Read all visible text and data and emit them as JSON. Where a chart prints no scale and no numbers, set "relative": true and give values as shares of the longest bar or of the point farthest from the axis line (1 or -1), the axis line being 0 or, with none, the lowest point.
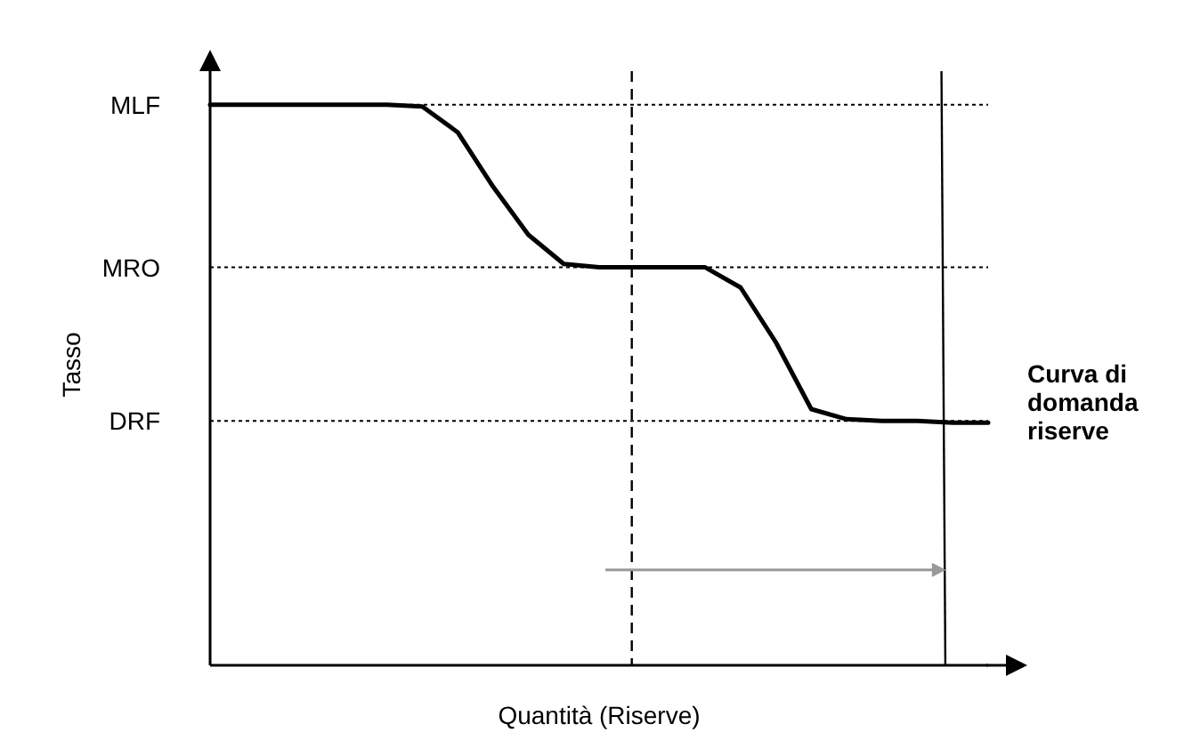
{
  "chart_data": {
    "type": "line",
    "xlabel": "Quantità (Riserve)",
    "ylabel": "Tasso",
    "relative": true,
    "marker": "none",
    "line_style": "solid",
    "categories": [
      null,
      null,
      null,
      null,
      null,
      null,
      null,
      null,
      null,
      null,
      null,
      null,
      null,
      null,
      null,
      null,
      null,
      null,
      null,
      null,
      null,
      null,
      null
    ],
    "series": [
      {
        "name": "Curva di domanda riserve",
        "color": "#000000",
        "values": [
          1,
          1,
          1,
          1,
          1,
          1,
          0.997,
          0.951,
          0.854,
          0.768,
          0.716,
          0.71,
          0.71,
          0.71,
          0.71,
          0.674,
          0.576,
          0.457,
          0.439,
          0.436,
          0.436,
          0.433,
          0.433
        ]
      }
    ],
    "ref_lines": [
      {
        "axis": "y",
        "value": 1,
        "label": "MLF",
        "line_style": "dotted",
        "color": "#000000"
      },
      {
        "axis": "y",
        "value": 0.71,
        "label": "MRO",
        "line_style": "dotted",
        "color": "#000000"
      },
      {
        "axis": "y",
        "value": 0.436,
        "label": "DRF",
        "line_style": "dotted",
        "color": "#000000"
      }
    ]
  }
}
